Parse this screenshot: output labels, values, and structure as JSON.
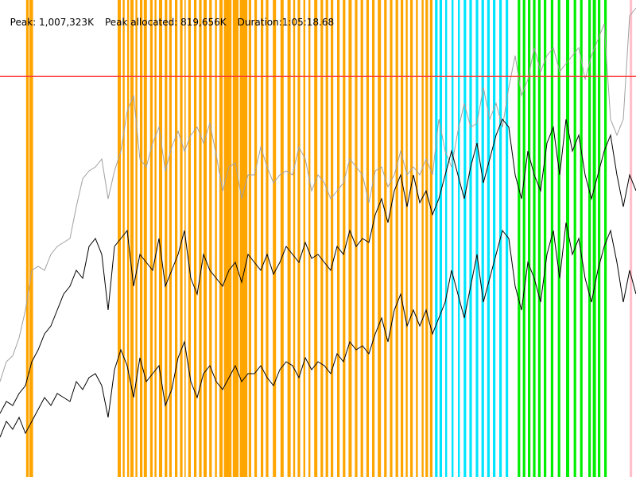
{
  "stats": {
    "peak": "Peak: 1,007,323K",
    "peak_allocated": "Peak allocated: 819,656K",
    "duration": "Duration:1:05:18.68"
  },
  "colors": {
    "background": "#ffffff",
    "peak_line": "#ff3333",
    "gc_young": "#ffa500",
    "gc_mixed": "#00e5ff",
    "gc_full": "#00ee00",
    "gc_other": "#ffc0cb",
    "total_heap": "#a0a0a0",
    "used_max": "#000000",
    "used_min": "#000000"
  },
  "chart_data": {
    "type": "line",
    "units": "K",
    "x_range": [
      0,
      1
    ],
    "y_range": [
      0,
      1200000
    ],
    "peak_line_value": 1007323,
    "gc_events": [
      {
        "kind": "young",
        "ranges": [
          [
            0.041,
            0.045
          ],
          [
            0.046,
            0.052
          ],
          [
            0.185,
            0.19
          ],
          [
            0.193,
            0.196
          ],
          [
            0.2,
            0.203
          ],
          [
            0.205,
            0.21
          ],
          [
            0.213,
            0.216
          ],
          [
            0.22,
            0.224
          ],
          [
            0.226,
            0.231
          ],
          [
            0.236,
            0.24
          ],
          [
            0.243,
            0.246
          ],
          [
            0.25,
            0.255
          ],
          [
            0.259,
            0.263
          ],
          [
            0.266,
            0.27
          ],
          [
            0.275,
            0.279
          ],
          [
            0.283,
            0.287
          ],
          [
            0.29,
            0.292
          ],
          [
            0.296,
            0.3
          ],
          [
            0.305,
            0.309
          ],
          [
            0.313,
            0.317
          ],
          [
            0.32,
            0.325
          ],
          [
            0.329,
            0.333
          ],
          [
            0.338,
            0.341
          ],
          [
            0.345,
            0.35
          ],
          [
            0.352,
            0.364
          ],
          [
            0.366,
            0.375
          ],
          [
            0.377,
            0.389
          ],
          [
            0.391,
            0.395
          ],
          [
            0.4,
            0.404
          ],
          [
            0.41,
            0.414
          ],
          [
            0.418,
            0.422
          ],
          [
            0.429,
            0.434
          ],
          [
            0.441,
            0.446
          ],
          [
            0.452,
            0.457
          ],
          [
            0.461,
            0.464
          ],
          [
            0.468,
            0.472
          ],
          [
            0.477,
            0.48
          ],
          [
            0.485,
            0.488
          ],
          [
            0.494,
            0.499
          ],
          [
            0.504,
            0.508
          ],
          [
            0.512,
            0.516
          ],
          [
            0.52,
            0.524
          ],
          [
            0.53,
            0.534
          ],
          [
            0.539,
            0.543
          ],
          [
            0.548,
            0.553
          ],
          [
            0.558,
            0.562
          ],
          [
            0.567,
            0.571
          ],
          [
            0.576,
            0.58
          ],
          [
            0.585,
            0.589
          ],
          [
            0.594,
            0.599
          ],
          [
            0.604,
            0.608
          ],
          [
            0.613,
            0.617
          ],
          [
            0.622,
            0.626
          ],
          [
            0.63,
            0.634
          ],
          [
            0.638,
            0.641
          ],
          [
            0.645,
            0.649
          ],
          [
            0.654,
            0.657
          ],
          [
            0.663,
            0.666
          ],
          [
            0.669,
            0.673
          ],
          [
            0.676,
            0.68
          ]
        ]
      },
      {
        "kind": "mixed",
        "ranges": [
          [
            0.684,
            0.688
          ],
          [
            0.691,
            0.695
          ],
          [
            0.7,
            0.703
          ],
          [
            0.71,
            0.713
          ],
          [
            0.72,
            0.723
          ],
          [
            0.729,
            0.733
          ],
          [
            0.738,
            0.742
          ],
          [
            0.748,
            0.752
          ],
          [
            0.757,
            0.761
          ],
          [
            0.766,
            0.77
          ],
          [
            0.775,
            0.779
          ],
          [
            0.785,
            0.789
          ],
          [
            0.795,
            0.799
          ]
        ]
      },
      {
        "kind": "full",
        "ranges": [
          [
            0.814,
            0.818
          ],
          [
            0.822,
            0.826
          ],
          [
            0.83,
            0.834
          ],
          [
            0.838,
            0.842
          ],
          [
            0.846,
            0.85
          ],
          [
            0.855,
            0.859
          ],
          [
            0.866,
            0.87
          ],
          [
            0.877,
            0.881
          ],
          [
            0.89,
            0.895
          ],
          [
            0.902,
            0.906
          ],
          [
            0.912,
            0.916
          ],
          [
            0.925,
            0.929
          ],
          [
            0.932,
            0.937
          ],
          [
            0.94,
            0.944
          ],
          [
            0.95,
            0.954
          ]
        ]
      },
      {
        "kind": "other",
        "ranges": [
          [
            0.99,
            0.994
          ]
        ]
      }
    ],
    "series": [
      {
        "key": "total_heap",
        "x": [
          0,
          0.01,
          0.02,
          0.03,
          0.04,
          0.05,
          0.06,
          0.07,
          0.08,
          0.09,
          0.1,
          0.11,
          0.12,
          0.13,
          0.14,
          0.15,
          0.16,
          0.17,
          0.18,
          0.19,
          0.2,
          0.21,
          0.22,
          0.23,
          0.24,
          0.25,
          0.26,
          0.27,
          0.28,
          0.29,
          0.3,
          0.31,
          0.32,
          0.33,
          0.34,
          0.35,
          0.36,
          0.37,
          0.38,
          0.39,
          0.4,
          0.41,
          0.42,
          0.43,
          0.44,
          0.45,
          0.46,
          0.47,
          0.48,
          0.49,
          0.5,
          0.51,
          0.52,
          0.53,
          0.54,
          0.55,
          0.56,
          0.57,
          0.58,
          0.59,
          0.6,
          0.61,
          0.62,
          0.63,
          0.64,
          0.65,
          0.66,
          0.67,
          0.68,
          0.69,
          0.7,
          0.71,
          0.72,
          0.73,
          0.74,
          0.75,
          0.76,
          0.77,
          0.78,
          0.79,
          0.8,
          0.81,
          0.82,
          0.83,
          0.84,
          0.85,
          0.86,
          0.87,
          0.88,
          0.89,
          0.9,
          0.91,
          0.92,
          0.93,
          0.94,
          0.95,
          0.96,
          0.97,
          0.98,
          0.99,
          1.0
        ],
        "values": [
          240000,
          290000,
          305000,
          350000,
          420000,
          520000,
          530000,
          520000,
          560000,
          580000,
          590000,
          600000,
          680000,
          750000,
          770000,
          780000,
          800000,
          700000,
          770000,
          820000,
          920000,
          960000,
          800000,
          780000,
          840000,
          880000,
          770000,
          830000,
          870000,
          820000,
          860000,
          880000,
          840000,
          890000,
          810000,
          720000,
          780000,
          790000,
          700000,
          760000,
          760000,
          830000,
          780000,
          740000,
          760000,
          770000,
          760000,
          830000,
          800000,
          720000,
          760000,
          740000,
          700000,
          720000,
          740000,
          800000,
          780000,
          760000,
          690000,
          770000,
          780000,
          730000,
          760000,
          820000,
          760000,
          780000,
          760000,
          800000,
          760000,
          900000,
          820000,
          780000,
          870000,
          940000,
          880000,
          890000,
          980000,
          900000,
          940000,
          880000,
          980000,
          1060000,
          960000,
          1000000,
          1080000,
          1020000,
          1060000,
          1080000,
          1020000,
          1040000,
          1060000,
          1080000,
          1000000,
          1060000,
          1100000,
          1140000,
          900000,
          860000,
          900000,
          1160000,
          1180000
        ]
      },
      {
        "key": "used_max",
        "x": [
          0,
          0.01,
          0.02,
          0.03,
          0.04,
          0.05,
          0.06,
          0.07,
          0.08,
          0.09,
          0.1,
          0.11,
          0.12,
          0.13,
          0.14,
          0.15,
          0.16,
          0.17,
          0.18,
          0.19,
          0.2,
          0.21,
          0.22,
          0.23,
          0.24,
          0.25,
          0.26,
          0.27,
          0.28,
          0.29,
          0.3,
          0.31,
          0.32,
          0.33,
          0.34,
          0.35,
          0.36,
          0.37,
          0.38,
          0.39,
          0.4,
          0.41,
          0.42,
          0.43,
          0.44,
          0.45,
          0.46,
          0.47,
          0.48,
          0.49,
          0.5,
          0.51,
          0.52,
          0.53,
          0.54,
          0.55,
          0.56,
          0.57,
          0.58,
          0.59,
          0.6,
          0.61,
          0.62,
          0.63,
          0.64,
          0.65,
          0.66,
          0.67,
          0.68,
          0.69,
          0.7,
          0.71,
          0.72,
          0.73,
          0.74,
          0.75,
          0.76,
          0.77,
          0.78,
          0.79,
          0.8,
          0.81,
          0.82,
          0.83,
          0.84,
          0.85,
          0.86,
          0.87,
          0.88,
          0.89,
          0.9,
          0.91,
          0.92,
          0.93,
          0.94,
          0.95,
          0.96,
          0.97,
          0.98,
          0.99,
          1.0
        ],
        "values": [
          160000,
          190000,
          180000,
          210000,
          230000,
          290000,
          320000,
          360000,
          380000,
          420000,
          460000,
          480000,
          520000,
          500000,
          580000,
          600000,
          560000,
          420000,
          580000,
          600000,
          620000,
          480000,
          560000,
          540000,
          520000,
          600000,
          480000,
          520000,
          560000,
          620000,
          500000,
          460000,
          560000,
          520000,
          500000,
          480000,
          520000,
          540000,
          490000,
          560000,
          540000,
          520000,
          560000,
          510000,
          540000,
          580000,
          560000,
          540000,
          590000,
          550000,
          560000,
          540000,
          520000,
          580000,
          560000,
          620000,
          580000,
          600000,
          590000,
          660000,
          700000,
          640000,
          720000,
          760000,
          680000,
          760000,
          690000,
          720000,
          660000,
          700000,
          760000,
          820000,
          760000,
          700000,
          780000,
          840000,
          740000,
          800000,
          860000,
          900000,
          880000,
          760000,
          700000,
          820000,
          760000,
          720000,
          840000,
          880000,
          760000,
          900000,
          820000,
          860000,
          760000,
          700000,
          760000,
          820000,
          860000,
          760000,
          680000,
          760000,
          720000
        ]
      },
      {
        "key": "used_min",
        "x": [
          0,
          0.01,
          0.02,
          0.03,
          0.04,
          0.05,
          0.06,
          0.07,
          0.08,
          0.09,
          0.1,
          0.11,
          0.12,
          0.13,
          0.14,
          0.15,
          0.16,
          0.17,
          0.18,
          0.19,
          0.2,
          0.21,
          0.22,
          0.23,
          0.24,
          0.25,
          0.26,
          0.27,
          0.28,
          0.29,
          0.3,
          0.31,
          0.32,
          0.33,
          0.34,
          0.35,
          0.36,
          0.37,
          0.38,
          0.39,
          0.4,
          0.41,
          0.42,
          0.43,
          0.44,
          0.45,
          0.46,
          0.47,
          0.48,
          0.49,
          0.5,
          0.51,
          0.52,
          0.53,
          0.54,
          0.55,
          0.56,
          0.57,
          0.58,
          0.59,
          0.6,
          0.61,
          0.62,
          0.63,
          0.64,
          0.65,
          0.66,
          0.67,
          0.68,
          0.69,
          0.7,
          0.71,
          0.72,
          0.73,
          0.74,
          0.75,
          0.76,
          0.77,
          0.78,
          0.79,
          0.8,
          0.81,
          0.82,
          0.83,
          0.84,
          0.85,
          0.86,
          0.87,
          0.88,
          0.89,
          0.9,
          0.91,
          0.92,
          0.93,
          0.94,
          0.95,
          0.96,
          0.97,
          0.98,
          0.99,
          1.0
        ],
        "values": [
          100000,
          140000,
          120000,
          150000,
          110000,
          140000,
          170000,
          200000,
          180000,
          210000,
          200000,
          190000,
          240000,
          220000,
          250000,
          260000,
          230000,
          150000,
          270000,
          320000,
          280000,
          200000,
          300000,
          240000,
          260000,
          280000,
          180000,
          220000,
          300000,
          340000,
          240000,
          200000,
          260000,
          280000,
          240000,
          220000,
          250000,
          280000,
          240000,
          260000,
          260000,
          280000,
          250000,
          230000,
          270000,
          290000,
          280000,
          250000,
          300000,
          270000,
          290000,
          280000,
          260000,
          310000,
          290000,
          340000,
          320000,
          330000,
          310000,
          360000,
          400000,
          340000,
          420000,
          460000,
          380000,
          420000,
          380000,
          420000,
          360000,
          400000,
          440000,
          520000,
          460000,
          400000,
          480000,
          560000,
          440000,
          500000,
          560000,
          620000,
          600000,
          480000,
          420000,
          540000,
          500000,
          440000,
          560000,
          620000,
          500000,
          640000,
          560000,
          600000,
          500000,
          440000,
          520000,
          580000,
          620000,
          540000,
          440000,
          520000,
          460000
        ]
      }
    ]
  }
}
